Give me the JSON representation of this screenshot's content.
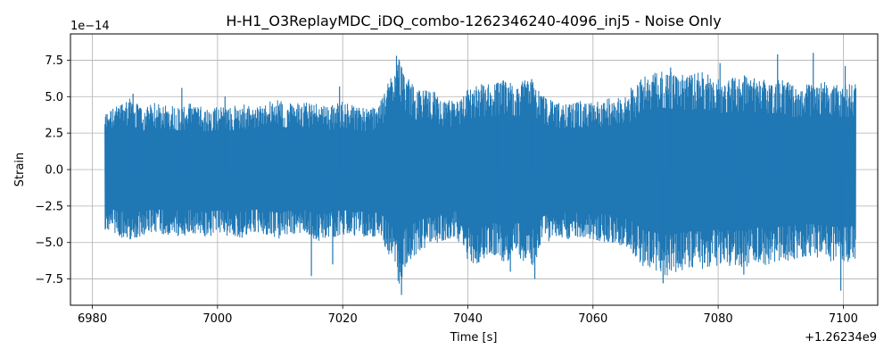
{
  "chart_data": {
    "type": "line",
    "title": "H-H1_O3ReplayMDC_iDQ_combo-1262346240-4096_inj5 - Noise Only",
    "xlabel": "Time [s]",
    "ylabel": "Strain",
    "x_offset_label": "+1.26234e9",
    "y_scale_label": "1e−14",
    "xlim": [
      6976.5,
      7105.5
    ],
    "ylim": [
      -9.3,
      9.3
    ],
    "x_range": [
      6982,
      7102
    ],
    "xticks": [
      6980,
      7000,
      7020,
      7040,
      7060,
      7080,
      7100
    ],
    "xtick_labels": [
      "6980",
      "7000",
      "7020",
      "7040",
      "7060",
      "7080",
      "7100"
    ],
    "yticks": [
      -7.5,
      -5.0,
      -2.5,
      0.0,
      2.5,
      5.0,
      7.5
    ],
    "ytick_labels": [
      "−7.5",
      "−5.0",
      "−2.5",
      "0.0",
      "2.5",
      "5.0",
      "7.5"
    ],
    "grid": true,
    "legend": "none",
    "series": [
      {
        "color": "#1f77b4",
        "envelope": {
          "x": [
            6982,
            6984,
            6986,
            6988,
            6990,
            6992,
            6994,
            6996,
            6998,
            7000,
            7002,
            7004,
            7006,
            7008,
            7010,
            7012,
            7014,
            7016,
            7018,
            7020,
            7022,
            7024,
            7026,
            7028,
            7029,
            7030,
            7032,
            7034,
            7036,
            7038,
            7040,
            7042,
            7044,
            7046,
            7048,
            7050,
            7052,
            7054,
            7056,
            7058,
            7060,
            7062,
            7064,
            7066,
            7068,
            7070,
            7072,
            7074,
            7076,
            7078,
            7080,
            7082,
            7084,
            7086,
            7088,
            7090,
            7092,
            7094,
            7096,
            7098,
            7100,
            7102
          ],
          "upper": [
            3.9,
            4.4,
            5.0,
            4.2,
            4.6,
            4.5,
            4.3,
            4.6,
            4.2,
            4.4,
            4.3,
            4.6,
            4.2,
            4.7,
            4.8,
            4.5,
            4.7,
            4.6,
            4.4,
            4.7,
            4.4,
            4.2,
            4.6,
            6.8,
            7.8,
            6.5,
            5.4,
            5.6,
            4.8,
            4.7,
            5.6,
            5.9,
            5.9,
            6.2,
            5.9,
            6.3,
            5.1,
            4.6,
            4.6,
            4.7,
            4.6,
            4.8,
            5.1,
            5.3,
            6.4,
            6.9,
            6.8,
            6.6,
            6.6,
            6.7,
            6.2,
            6.4,
            6.5,
            6.3,
            6.2,
            6.3,
            5.8,
            5.9,
            6.0,
            6.0,
            5.8,
            6.0
          ],
          "lower": [
            -4.1,
            -4.6,
            -4.8,
            -4.6,
            -4.4,
            -4.5,
            -4.6,
            -4.4,
            -4.7,
            -4.5,
            -4.6,
            -4.7,
            -4.4,
            -4.6,
            -4.8,
            -4.4,
            -4.5,
            -5.0,
            -4.7,
            -4.5,
            -4.6,
            -4.7,
            -4.8,
            -6.5,
            -8.2,
            -6.6,
            -5.7,
            -5.2,
            -4.9,
            -4.6,
            -6.4,
            -6.5,
            -5.9,
            -6.4,
            -5.9,
            -7.0,
            -5.2,
            -4.6,
            -4.8,
            -4.7,
            -4.8,
            -5.0,
            -5.1,
            -5.6,
            -6.7,
            -7.0,
            -7.3,
            -7.0,
            -6.8,
            -6.9,
            -6.6,
            -6.7,
            -6.8,
            -6.4,
            -6.6,
            -6.3,
            -6.2,
            -6.0,
            -6.1,
            -6.3,
            -6.4,
            -6.2
          ]
        },
        "spikes": [
          {
            "x": 6986.5,
            "y": 5.2
          },
          {
            "x": 6994.3,
            "y": 5.6
          },
          {
            "x": 7001.2,
            "y": 5.0
          },
          {
            "x": 7015.0,
            "y": -7.3
          },
          {
            "x": 7018.4,
            "y": -6.5
          },
          {
            "x": 7019.5,
            "y": 5.7
          },
          {
            "x": 7028.6,
            "y": 7.8
          },
          {
            "x": 7029.4,
            "y": -8.6
          },
          {
            "x": 7044.6,
            "y": 5.9
          },
          {
            "x": 7046.8,
            "y": -7.0
          },
          {
            "x": 7050.7,
            "y": -7.5
          },
          {
            "x": 7050.2,
            "y": 6.2
          },
          {
            "x": 7066.1,
            "y": 5.6
          },
          {
            "x": 7071.2,
            "y": -7.8
          },
          {
            "x": 7072.4,
            "y": 7.0
          },
          {
            "x": 7080.3,
            "y": 7.3
          },
          {
            "x": 7084.1,
            "y": -7.2
          },
          {
            "x": 7089.5,
            "y": 7.9
          },
          {
            "x": 7095.2,
            "y": 8.0
          },
          {
            "x": 7099.6,
            "y": -8.3
          },
          {
            "x": 7100.3,
            "y": 7.1
          }
        ]
      }
    ]
  }
}
